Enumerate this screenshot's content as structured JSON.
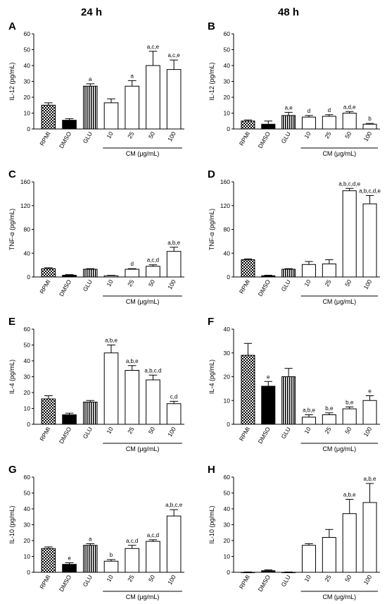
{
  "figure": {
    "column_headings": [
      "24 h",
      "48 h"
    ],
    "patterns": {
      "RPMI": "checker",
      "DMSO": "solid",
      "GLU": "stripes",
      "CM": "white"
    }
  },
  "chart_data": [
    {
      "type": "bar",
      "panel": "A",
      "column": 0,
      "row": 0,
      "ylabel": "IL-12 (pg/mL)",
      "ylim": [
        0,
        60
      ],
      "yticks": [
        0,
        10,
        20,
        30,
        40,
        50,
        60
      ],
      "categories": [
        "RPMI",
        "DMSO",
        "GLU",
        "10",
        "25",
        "50",
        "100"
      ],
      "values": [
        15,
        5.5,
        27,
        16.5,
        27,
        40,
        37.5
      ],
      "errors": [
        1.5,
        1,
        1.5,
        2.5,
        3.5,
        9,
        6
      ],
      "annotations": [
        "",
        "",
        "a",
        "",
        "a",
        "a,c,e",
        "a,c,e"
      ],
      "group_label": "CM (μg/mL)"
    },
    {
      "type": "bar",
      "panel": "B",
      "column": 1,
      "row": 0,
      "ylabel": "IL-12 (pg/mL)",
      "ylim": [
        0,
        60
      ],
      "yticks": [
        0,
        10,
        20,
        30,
        40,
        50,
        60
      ],
      "categories": [
        "RPMI",
        "DMSO",
        "GLU",
        "10",
        "25",
        "50",
        "100"
      ],
      "values": [
        5,
        3,
        8.5,
        7.5,
        8,
        10,
        3
      ],
      "errors": [
        0.7,
        2,
        2,
        1,
        1,
        1,
        0.5
      ],
      "annotations": [
        "",
        "",
        "a,e",
        "d",
        "d",
        "a,d,e",
        "b"
      ],
      "group_label": "CM (μg/mL)"
    },
    {
      "type": "bar",
      "panel": "C",
      "column": 0,
      "row": 1,
      "ylabel": "TNF-α (pg/mL)",
      "ylim": [
        0,
        160
      ],
      "yticks": [
        0,
        40,
        80,
        120,
        160
      ],
      "categories": [
        "RPMI",
        "DMSO",
        "GLU",
        "10",
        "25",
        "50",
        "100"
      ],
      "values": [
        14,
        3,
        13,
        2,
        13,
        18,
        43
      ],
      "errors": [
        1.5,
        1,
        1,
        0.7,
        1,
        2.5,
        7
      ],
      "annotations": [
        "",
        "",
        "",
        "",
        "d",
        "a,c,d",
        "a,b,e"
      ],
      "group_label": "CM (μg/mL)"
    },
    {
      "type": "bar",
      "panel": "D",
      "column": 1,
      "row": 1,
      "ylabel": "TNF-α (pg/mL)",
      "ylim": [
        0,
        160
      ],
      "yticks": [
        0,
        40,
        80,
        120,
        160
      ],
      "categories": [
        "RPMI",
        "DMSO",
        "GLU",
        "10",
        "25",
        "50",
        "100"
      ],
      "values": [
        29,
        2,
        13,
        21,
        22,
        145,
        123
      ],
      "errors": [
        1.5,
        1,
        1,
        5,
        7,
        4,
        14
      ],
      "annotations": [
        "",
        "",
        "",
        "",
        "",
        "a,b,c,d,e",
        "a,b,c,d,e"
      ],
      "group_label": "CM (μg/mL)"
    },
    {
      "type": "bar",
      "panel": "E",
      "column": 0,
      "row": 2,
      "ylabel": "IL-4 (pg/mL)",
      "ylim": [
        0,
        60
      ],
      "yticks": [
        0,
        10,
        20,
        30,
        40,
        50,
        60
      ],
      "categories": [
        "RPMI",
        "DMSO",
        "GLU",
        "10",
        "25",
        "50",
        "100"
      ],
      "values": [
        16,
        6,
        14,
        45,
        34,
        28,
        13
      ],
      "errors": [
        2,
        1,
        1,
        5,
        3,
        3,
        1.5
      ],
      "annotations": [
        "",
        "",
        "",
        "a,b,e",
        "a,b,e",
        "a,b,c,d",
        "c,d"
      ],
      "group_label": "CM (μg/mL)"
    },
    {
      "type": "bar",
      "panel": "F",
      "column": 1,
      "row": 2,
      "ylabel": "IL-4 (pg/mL)",
      "ylim": [
        0,
        40
      ],
      "yticks": [
        0,
        10,
        20,
        30,
        40
      ],
      "categories": [
        "RPMI",
        "DMSO",
        "GLU",
        "10",
        "25",
        "50",
        "100"
      ],
      "values": [
        29,
        16,
        20,
        3,
        4,
        6.5,
        10
      ],
      "errors": [
        5,
        2,
        3.5,
        1,
        0.8,
        0.8,
        2
      ],
      "annotations": [
        "",
        "e",
        "",
        "a,b,e",
        "b,e",
        "b,e",
        "e"
      ],
      "group_label": "CM (μg/mL)"
    },
    {
      "type": "bar",
      "panel": "G",
      "column": 0,
      "row": 3,
      "ylabel": "IL-10 (pg/mL)",
      "ylim": [
        0,
        60
      ],
      "yticks": [
        0,
        10,
        20,
        30,
        40,
        50,
        60
      ],
      "categories": [
        "RPMI",
        "DMSO",
        "GLU",
        "10",
        "25",
        "50",
        "100"
      ],
      "values": [
        15,
        5,
        17,
        7,
        15,
        19.5,
        35.5
      ],
      "errors": [
        1,
        1,
        1,
        1,
        2,
        1,
        4
      ],
      "annotations": [
        "",
        "e",
        "a",
        "b",
        "a,c,d",
        "a,c,d",
        "a,b,c,e"
      ],
      "group_label": "CM (μg/mL)"
    },
    {
      "type": "bar",
      "panel": "H",
      "column": 1,
      "row": 3,
      "ylabel": "IL-10 (pg/mL)",
      "ylim": [
        0,
        60
      ],
      "yticks": [
        0,
        10,
        20,
        30,
        40,
        50,
        60
      ],
      "categories": [
        "RPMI",
        "DMSO",
        "GLU",
        "10",
        "25",
        "50",
        "100"
      ],
      "values": [
        0,
        1,
        0,
        17,
        22,
        37,
        44
      ],
      "errors": [
        0.2,
        0.5,
        0.2,
        1,
        5,
        9,
        12
      ],
      "annotations": [
        "",
        "",
        "",
        "",
        "",
        "a,b,e",
        "a,b,e"
      ],
      "group_label": "CM (μg/mL)"
    }
  ]
}
